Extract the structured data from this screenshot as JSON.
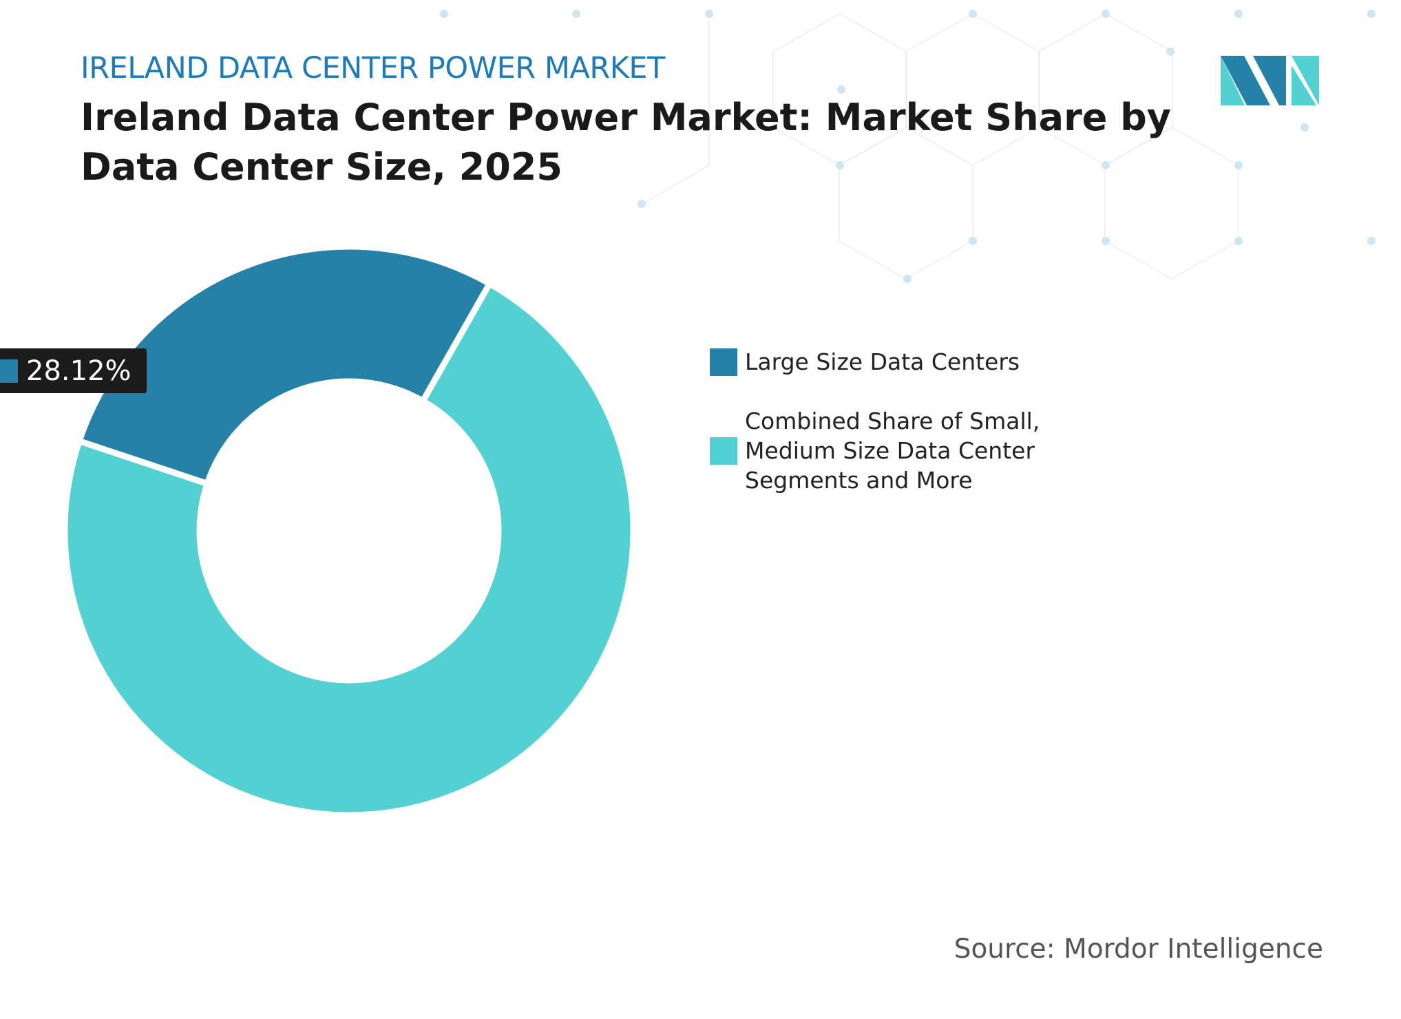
{
  "chart_data": {
    "type": "pie",
    "subtitle": "IRELAND DATA CENTER POWER MARKET",
    "title": "Ireland Data Center  Power Market: Market Share by Data Center Size, 2025",
    "categories": [
      "Large Size Data Centers",
      "Combined Share of Small, Medium Size Data Center Segments and More"
    ],
    "values": [
      28.12,
      71.88
    ],
    "value_labels": [
      "28.12%",
      null
    ],
    "colors": [
      "#2681a8",
      "#52d0d2"
    ],
    "source": "Source: Mordor Intelligence"
  }
}
